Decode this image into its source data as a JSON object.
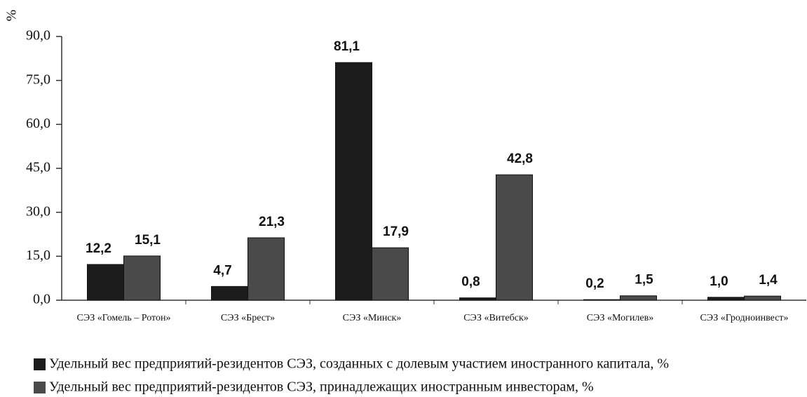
{
  "chart_data": {
    "type": "bar",
    "y_label": "%",
    "categories": [
      "СЭЗ «Гомель – Ротон»",
      "СЭЗ «Брест»",
      "СЭЗ «Минск»",
      "СЭЗ «Витебск»",
      "СЭЗ «Могилев»",
      "СЭЗ «Гродноинвест»"
    ],
    "series": [
      {
        "name": "Удельный вес предприятий-резидентов СЭЗ, созданных с долевым участием иностранного капитала, %",
        "color": "#1c1c1c",
        "values": [
          12.2,
          4.7,
          81.1,
          0.8,
          0.2,
          1.0
        ],
        "value_labels": [
          "12,2",
          "4,7",
          "81,1",
          "0,8",
          "0,2",
          "1,0"
        ]
      },
      {
        "name": "Удельный вес предприятий-резидентов СЭЗ, принадлежащих иностранным инвесторам, %",
        "color": "#4a4a4a",
        "values": [
          15.1,
          21.3,
          17.9,
          42.8,
          1.5,
          1.4
        ],
        "value_labels": [
          "15,1",
          "21,3",
          "17,9",
          "42,8",
          "1,5",
          "1,4"
        ]
      }
    ],
    "ylim": [
      0,
      90
    ],
    "yticks": [
      {
        "value": 0,
        "label": "0,0"
      },
      {
        "value": 15,
        "label": "15,0"
      },
      {
        "value": 30,
        "label": "30,0"
      },
      {
        "value": 45,
        "label": "45,0"
      },
      {
        "value": 60,
        "label": "60,0"
      },
      {
        "value": 75,
        "label": "75,0"
      },
      {
        "value": 90,
        "label": "90,0"
      }
    ]
  }
}
